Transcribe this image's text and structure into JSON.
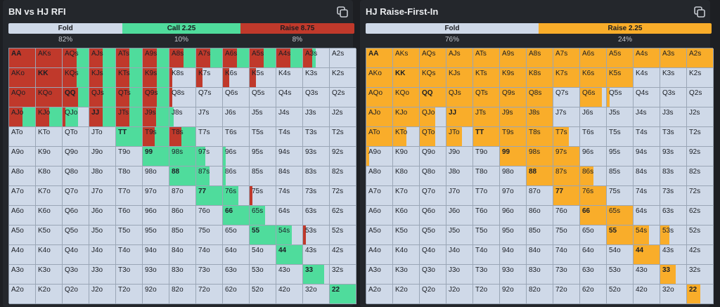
{
  "left": {
    "title": "BN vs HJ RFI",
    "colors": {
      "fold": "#cfd9e8",
      "call": "#4fdc9c",
      "raise": "#c0392b"
    },
    "summary": [
      {
        "label": "Fold",
        "pct": "82%",
        "share": 0.33,
        "color": "#cfd9e8"
      },
      {
        "label": "Call 2.25",
        "pct": "10%",
        "share": 0.34,
        "color": "#4fdc9c"
      },
      {
        "label": "Raise 8.75",
        "pct": "8%",
        "share": 0.33,
        "color": "#c0392b"
      }
    ],
    "cells": [
      [
        {
          "l": "AA",
          "r": 1
        },
        {
          "l": "AKs",
          "r": 1
        },
        {
          "l": "AQs",
          "r": 0.55,
          "c": 0.45
        },
        {
          "l": "AJs",
          "r": 0.5,
          "c": 0.5
        },
        {
          "l": "ATs",
          "r": 0.5,
          "c": 0.5
        },
        {
          "l": "A9s",
          "r": 0.55,
          "c": 0.45
        },
        {
          "l": "A8s",
          "r": 0.55,
          "c": 0.45
        },
        {
          "l": "A7s",
          "r": 0.55,
          "c": 0.45
        },
        {
          "l": "A6s",
          "r": 0.55,
          "c": 0.45
        },
        {
          "l": "A5s",
          "r": 0.55,
          "c": 0.45
        },
        {
          "l": "A4s",
          "r": 0.55,
          "c": 0.45
        },
        {
          "l": "A3s",
          "r": 0.35,
          "c": 0.15
        },
        {
          "l": "A2s"
        }
      ],
      [
        {
          "l": "AKo",
          "r": 1
        },
        {
          "l": "KK",
          "r": 1
        },
        {
          "l": "KQs",
          "r": 0.55,
          "c": 0.45
        },
        {
          "l": "KJs",
          "r": 0.5,
          "c": 0.5
        },
        {
          "l": "KTs",
          "r": 0.5,
          "c": 0.5
        },
        {
          "l": "K9s",
          "r": 0.55,
          "c": 0.45
        },
        {
          "l": "K8s",
          "r": 0.1
        },
        {
          "l": "K7s",
          "r": 0.25
        },
        {
          "l": "K6s",
          "r": 0.25
        },
        {
          "l": "K5s",
          "r": 0.25
        },
        {
          "l": "K4s"
        },
        {
          "l": "K3s"
        },
        {
          "l": "K2s"
        }
      ],
      [
        {
          "l": "AQo",
          "r": 1
        },
        {
          "l": "KQo",
          "r": 1
        },
        {
          "l": "QQ",
          "r": 0.6,
          "c": 0.4
        },
        {
          "l": "QJs",
          "r": 0.5,
          "c": 0.5
        },
        {
          "l": "QTs",
          "r": 0.5,
          "c": 0.5
        },
        {
          "l": "Q9s",
          "r": 0.55,
          "c": 0.45
        },
        {
          "l": "Q8s",
          "r": 0.1
        },
        {
          "l": "Q7s"
        },
        {
          "l": "Q6s"
        },
        {
          "l": "Q5s"
        },
        {
          "l": "Q4s"
        },
        {
          "l": "Q3s"
        },
        {
          "l": "Q2s"
        }
      ],
      [
        {
          "l": "AJo",
          "c": 0.5,
          "r": 0.5
        },
        {
          "l": "KJo",
          "c": 0.5,
          "r": 0.5
        },
        {
          "l": "QJo",
          "c": 0.5,
          "r": 0.1
        },
        {
          "l": "JJ",
          "r": 0.5,
          "c": 0.5
        },
        {
          "l": "JTs",
          "r": 0.5,
          "c": 0.5
        },
        {
          "l": "J9s",
          "r": 0.5,
          "c": 0.5
        },
        {
          "l": "J8s",
          "c": 0.15
        },
        {
          "l": "J7s"
        },
        {
          "l": "J6s"
        },
        {
          "l": "J5s"
        },
        {
          "l": "J4s"
        },
        {
          "l": "J3s"
        },
        {
          "l": "J2s"
        }
      ],
      [
        {
          "l": "ATo"
        },
        {
          "l": "KTo"
        },
        {
          "l": "QTo"
        },
        {
          "l": "JTo"
        },
        {
          "l": "TT",
          "c": 1
        },
        {
          "l": "T9s",
          "c": 0.55,
          "r": 0.45
        },
        {
          "l": "T8s",
          "c": 0.55,
          "r": 0.45
        },
        {
          "l": "T7s"
        },
        {
          "l": "T6s"
        },
        {
          "l": "T5s"
        },
        {
          "l": "T4s"
        },
        {
          "l": "T3s"
        },
        {
          "l": "T2s"
        }
      ],
      [
        {
          "l": "A9o"
        },
        {
          "l": "K9o"
        },
        {
          "l": "Q9o"
        },
        {
          "l": "J9o"
        },
        {
          "l": "T9o"
        },
        {
          "l": "99",
          "c": 1
        },
        {
          "l": "98s",
          "c": 1
        },
        {
          "l": "97s",
          "c": 0.35
        },
        {
          "l": "96s",
          "c": 0.1
        },
        {
          "l": "95s"
        },
        {
          "l": "94s"
        },
        {
          "l": "93s"
        },
        {
          "l": "92s"
        }
      ],
      [
        {
          "l": "A8o"
        },
        {
          "l": "K8o"
        },
        {
          "l": "Q8o"
        },
        {
          "l": "J8o"
        },
        {
          "l": "T8o"
        },
        {
          "l": "98o"
        },
        {
          "l": "88",
          "c": 1
        },
        {
          "l": "87s",
          "c": 0.5
        },
        {
          "l": "86s",
          "c": 0.1
        },
        {
          "l": "85s"
        },
        {
          "l": "84s"
        },
        {
          "l": "83s"
        },
        {
          "l": "82s"
        }
      ],
      [
        {
          "l": "A7o"
        },
        {
          "l": "K7o"
        },
        {
          "l": "Q7o"
        },
        {
          "l": "J7o"
        },
        {
          "l": "T7o"
        },
        {
          "l": "97o"
        },
        {
          "l": "87o"
        },
        {
          "l": "77",
          "c": 1
        },
        {
          "l": "76s",
          "c": 0.6
        },
        {
          "l": "75s",
          "r": 0.1
        },
        {
          "l": "74s"
        },
        {
          "l": "73s"
        },
        {
          "l": "72s"
        }
      ],
      [
        {
          "l": "A6o"
        },
        {
          "l": "K6o"
        },
        {
          "l": "Q6o"
        },
        {
          "l": "J6o"
        },
        {
          "l": "T6o"
        },
        {
          "l": "96o"
        },
        {
          "l": "86o"
        },
        {
          "l": "76o"
        },
        {
          "l": "66",
          "c": 1
        },
        {
          "l": "65s",
          "c": 0.6
        },
        {
          "l": "64s"
        },
        {
          "l": "63s"
        },
        {
          "l": "62s"
        }
      ],
      [
        {
          "l": "A5o"
        },
        {
          "l": "K5o"
        },
        {
          "l": "Q5o"
        },
        {
          "l": "J5o"
        },
        {
          "l": "T5o"
        },
        {
          "l": "95o"
        },
        {
          "l": "85o"
        },
        {
          "l": "75o"
        },
        {
          "l": "65o"
        },
        {
          "l": "55",
          "c": 1
        },
        {
          "l": "54s",
          "c": 0.6
        },
        {
          "l": "53s",
          "r": 0.1
        },
        {
          "l": "52s"
        }
      ],
      [
        {
          "l": "A4o"
        },
        {
          "l": "K4o"
        },
        {
          "l": "Q4o"
        },
        {
          "l": "J4o"
        },
        {
          "l": "T4o"
        },
        {
          "l": "94o"
        },
        {
          "l": "84o"
        },
        {
          "l": "74o"
        },
        {
          "l": "64o"
        },
        {
          "l": "54o"
        },
        {
          "l": "44",
          "c": 1
        },
        {
          "l": "43s"
        },
        {
          "l": "42s"
        }
      ],
      [
        {
          "l": "A3o"
        },
        {
          "l": "K3o"
        },
        {
          "l": "Q3o"
        },
        {
          "l": "J3o"
        },
        {
          "l": "T3o"
        },
        {
          "l": "93o"
        },
        {
          "l": "83o"
        },
        {
          "l": "73o"
        },
        {
          "l": "63o"
        },
        {
          "l": "53o"
        },
        {
          "l": "43o"
        },
        {
          "l": "33",
          "c": 0.8
        },
        {
          "l": "32s"
        }
      ],
      [
        {
          "l": "A2o"
        },
        {
          "l": "K2o"
        },
        {
          "l": "Q2o"
        },
        {
          "l": "J2o"
        },
        {
          "l": "T2o"
        },
        {
          "l": "92o"
        },
        {
          "l": "82o"
        },
        {
          "l": "72o"
        },
        {
          "l": "62o"
        },
        {
          "l": "52o"
        },
        {
          "l": "42o"
        },
        {
          "l": "32o"
        },
        {
          "l": "22",
          "c": 1
        }
      ]
    ]
  },
  "right": {
    "title": "HJ Raise-First-In",
    "colors": {
      "fold": "#cfd9e8",
      "raise": "#f9ad2a"
    },
    "summary": [
      {
        "label": "Fold",
        "pct": "76%",
        "share": 0.5,
        "color": "#cfd9e8"
      },
      {
        "label": "Raise 2.25",
        "pct": "24%",
        "share": 0.5,
        "color": "#f9ad2a"
      }
    ],
    "cells": [
      [
        {
          "l": "AA",
          "r": 1
        },
        {
          "l": "AKs",
          "r": 1
        },
        {
          "l": "AQs",
          "r": 1
        },
        {
          "l": "AJs",
          "r": 1
        },
        {
          "l": "ATs",
          "r": 1
        },
        {
          "l": "A9s",
          "r": 1
        },
        {
          "l": "A8s",
          "r": 1
        },
        {
          "l": "A7s",
          "r": 1
        },
        {
          "l": "A6s",
          "r": 1
        },
        {
          "l": "A5s",
          "r": 1
        },
        {
          "l": "A4s",
          "r": 1
        },
        {
          "l": "A3s",
          "r": 1
        },
        {
          "l": "A2s",
          "r": 1
        }
      ],
      [
        {
          "l": "AKo",
          "r": 1
        },
        {
          "l": "KK",
          "r": 1
        },
        {
          "l": "KQs",
          "r": 1
        },
        {
          "l": "KJs",
          "r": 1
        },
        {
          "l": "KTs",
          "r": 1
        },
        {
          "l": "K9s",
          "r": 1
        },
        {
          "l": "K8s",
          "r": 1
        },
        {
          "l": "K7s",
          "r": 1
        },
        {
          "l": "K6s",
          "r": 1
        },
        {
          "l": "K5s",
          "r": 1
        },
        {
          "l": "K4s"
        },
        {
          "l": "K3s"
        },
        {
          "l": "K2s"
        }
      ],
      [
        {
          "l": "AQo",
          "r": 1
        },
        {
          "l": "KQo",
          "r": 1
        },
        {
          "l": "QQ",
          "r": 1
        },
        {
          "l": "QJs",
          "r": 1
        },
        {
          "l": "QTs",
          "r": 1
        },
        {
          "l": "Q9s",
          "r": 1
        },
        {
          "l": "Q8s",
          "r": 1
        },
        {
          "l": "Q7s"
        },
        {
          "l": "Q6s",
          "r": 0.85
        },
        {
          "l": "Q5s",
          "r": 0.1
        },
        {
          "l": "Q4s"
        },
        {
          "l": "Q3s"
        },
        {
          "l": "Q2s"
        }
      ],
      [
        {
          "l": "AJo",
          "r": 1
        },
        {
          "l": "KJo",
          "r": 1
        },
        {
          "l": "QJo",
          "r": 0.6
        },
        {
          "l": "JJ",
          "r": 1
        },
        {
          "l": "JTs",
          "r": 1
        },
        {
          "l": "J9s",
          "r": 1
        },
        {
          "l": "J8s",
          "r": 1
        },
        {
          "l": "J7s"
        },
        {
          "l": "J6s"
        },
        {
          "l": "J5s"
        },
        {
          "l": "J4s"
        },
        {
          "l": "J3s"
        },
        {
          "l": "J2s"
        }
      ],
      [
        {
          "l": "ATo",
          "r": 1
        },
        {
          "l": "KTo",
          "r": 0.5
        },
        {
          "l": "QTo",
          "r": 0.6
        },
        {
          "l": "JTo",
          "r": 0.6
        },
        {
          "l": "TT",
          "r": 1
        },
        {
          "l": "T9s",
          "r": 1
        },
        {
          "l": "T8s",
          "r": 1
        },
        {
          "l": "T7s",
          "r": 0.6
        },
        {
          "l": "T6s"
        },
        {
          "l": "T5s"
        },
        {
          "l": "T4s"
        },
        {
          "l": "T3s"
        },
        {
          "l": "T2s"
        }
      ],
      [
        {
          "l": "A9o",
          "r": 0.1
        },
        {
          "l": "K9o"
        },
        {
          "l": "Q9o"
        },
        {
          "l": "J9o"
        },
        {
          "l": "T9o"
        },
        {
          "l": "99",
          "r": 1
        },
        {
          "l": "98s",
          "r": 1
        },
        {
          "l": "97s",
          "r": 1
        },
        {
          "l": "96s"
        },
        {
          "l": "95s"
        },
        {
          "l": "94s"
        },
        {
          "l": "93s"
        },
        {
          "l": "92s"
        }
      ],
      [
        {
          "l": "A8o"
        },
        {
          "l": "K8o"
        },
        {
          "l": "Q8o"
        },
        {
          "l": "J8o"
        },
        {
          "l": "T8o"
        },
        {
          "l": "98o"
        },
        {
          "l": "88",
          "r": 1
        },
        {
          "l": "87s",
          "r": 1
        },
        {
          "l": "86s",
          "r": 0.5
        },
        {
          "l": "85s"
        },
        {
          "l": "84s"
        },
        {
          "l": "83s"
        },
        {
          "l": "82s"
        }
      ],
      [
        {
          "l": "A7o"
        },
        {
          "l": "K7o"
        },
        {
          "l": "Q7o"
        },
        {
          "l": "J7o"
        },
        {
          "l": "T7o"
        },
        {
          "l": "97o"
        },
        {
          "l": "87o"
        },
        {
          "l": "77",
          "r": 1
        },
        {
          "l": "76s",
          "r": 1
        },
        {
          "l": "75s"
        },
        {
          "l": "74s"
        },
        {
          "l": "73s"
        },
        {
          "l": "72s"
        }
      ],
      [
        {
          "l": "A6o"
        },
        {
          "l": "K6o"
        },
        {
          "l": "Q6o"
        },
        {
          "l": "J6o"
        },
        {
          "l": "T6o"
        },
        {
          "l": "96o"
        },
        {
          "l": "86o"
        },
        {
          "l": "76o"
        },
        {
          "l": "66",
          "r": 1
        },
        {
          "l": "65s",
          "r": 1
        },
        {
          "l": "64s"
        },
        {
          "l": "63s"
        },
        {
          "l": "62s"
        }
      ],
      [
        {
          "l": "A5o"
        },
        {
          "l": "K5o"
        },
        {
          "l": "Q5o"
        },
        {
          "l": "J5o"
        },
        {
          "l": "T5o"
        },
        {
          "l": "95o"
        },
        {
          "l": "85o"
        },
        {
          "l": "75o"
        },
        {
          "l": "65o"
        },
        {
          "l": "55",
          "r": 1
        },
        {
          "l": "54s",
          "r": 0.6
        },
        {
          "l": "53s",
          "r": 0.35
        },
        {
          "l": "52s"
        }
      ],
      [
        {
          "l": "A4o"
        },
        {
          "l": "K4o"
        },
        {
          "l": "Q4o"
        },
        {
          "l": "J4o"
        },
        {
          "l": "T4o"
        },
        {
          "l": "94o"
        },
        {
          "l": "84o"
        },
        {
          "l": "74o"
        },
        {
          "l": "64o"
        },
        {
          "l": "54o"
        },
        {
          "l": "44",
          "r": 1
        },
        {
          "l": "43s"
        },
        {
          "l": "42s"
        }
      ],
      [
        {
          "l": "A3o"
        },
        {
          "l": "K3o"
        },
        {
          "l": "Q3o"
        },
        {
          "l": "J3o"
        },
        {
          "l": "T3o"
        },
        {
          "l": "93o"
        },
        {
          "l": "83o"
        },
        {
          "l": "73o"
        },
        {
          "l": "63o"
        },
        {
          "l": "53o"
        },
        {
          "l": "43o"
        },
        {
          "l": "33",
          "r": 0.6
        },
        {
          "l": "32s"
        }
      ],
      [
        {
          "l": "A2o"
        },
        {
          "l": "K2o"
        },
        {
          "l": "Q2o"
        },
        {
          "l": "J2o"
        },
        {
          "l": "T2o"
        },
        {
          "l": "92o"
        },
        {
          "l": "82o"
        },
        {
          "l": "72o"
        },
        {
          "l": "62o"
        },
        {
          "l": "52o"
        },
        {
          "l": "42o"
        },
        {
          "l": "32o"
        },
        {
          "l": "22",
          "r": 0.5
        }
      ]
    ]
  }
}
